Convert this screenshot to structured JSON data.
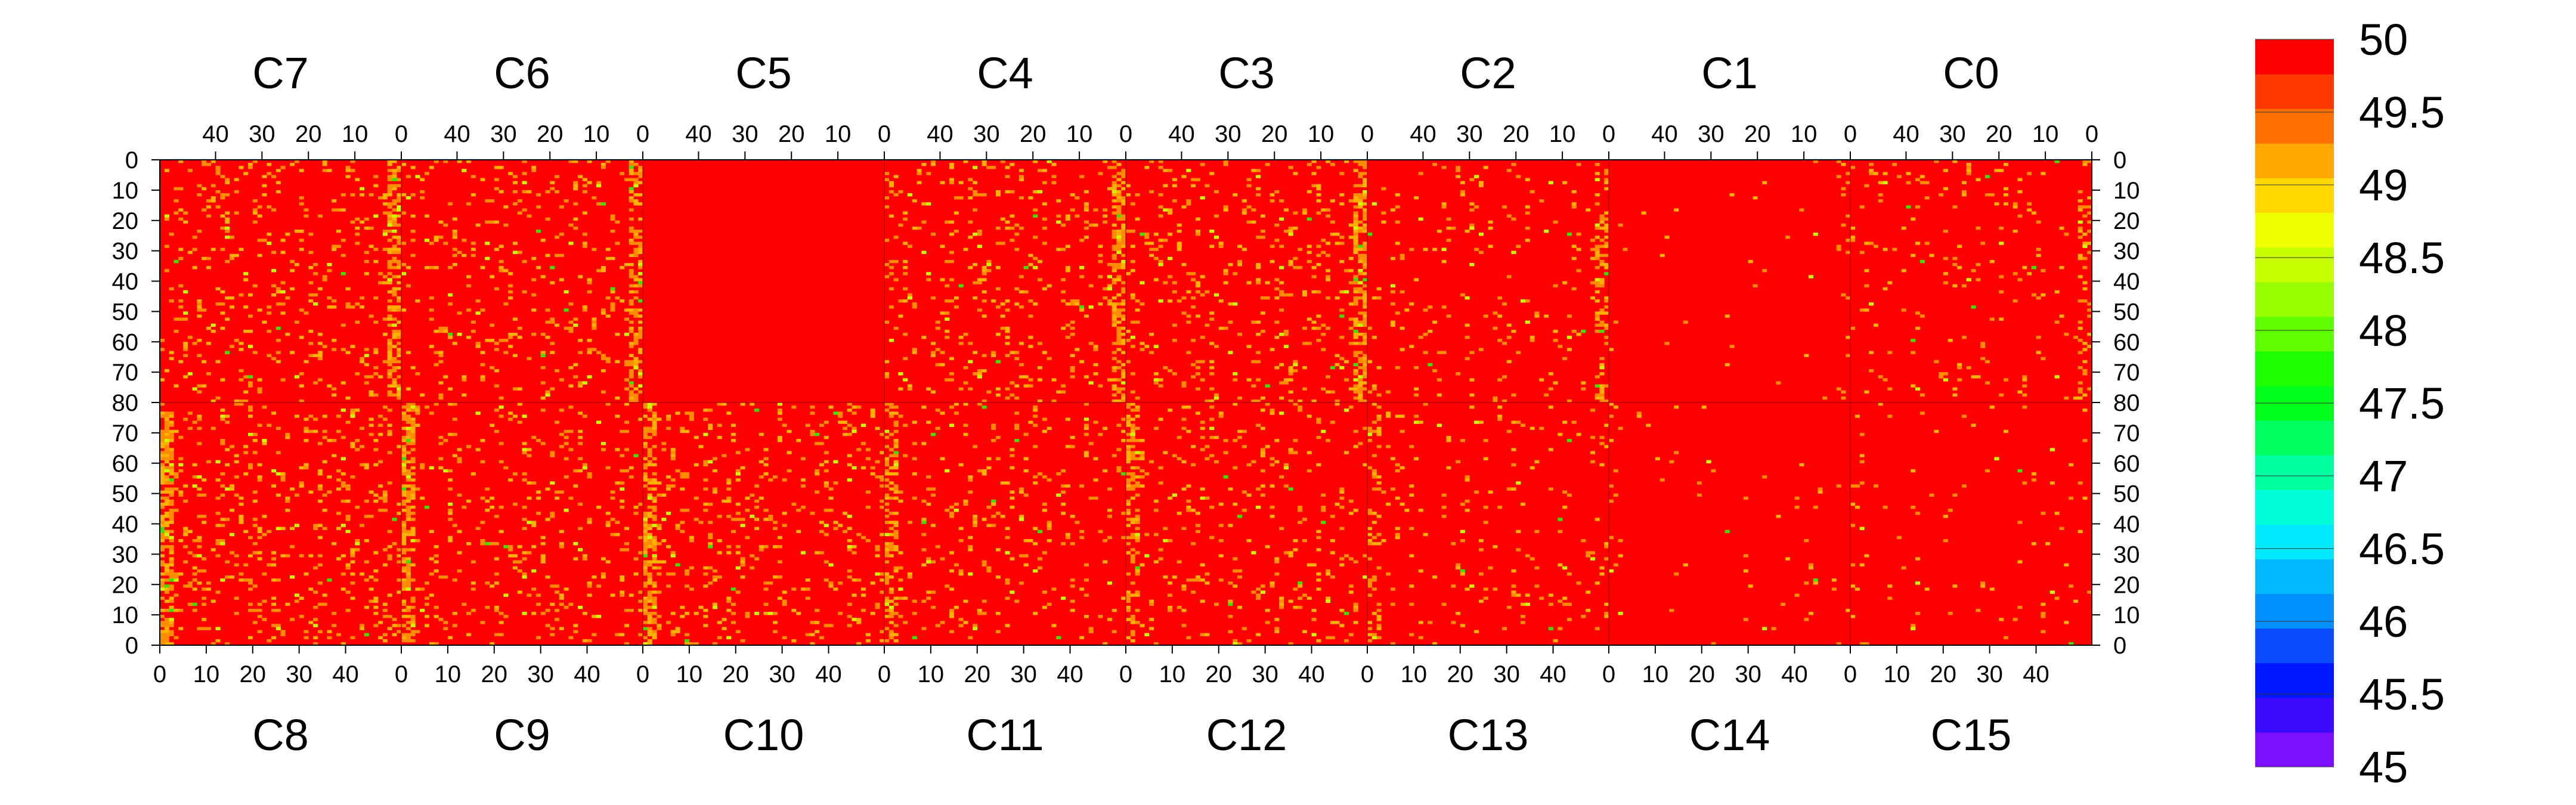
{
  "chart_data": {
    "type": "heatmap",
    "title": "",
    "top_chips": [
      "C7",
      "C6",
      "C5",
      "C4",
      "C3",
      "C2",
      "C1",
      "C0"
    ],
    "bottom_chips": [
      "C8",
      "C9",
      "C10",
      "C11",
      "C12",
      "C13",
      "C14",
      "C15"
    ],
    "top_x_ticks": [
      "40",
      "30",
      "20",
      "10",
      "0"
    ],
    "bottom_x_ticks": [
      "0",
      "10",
      "20",
      "30",
      "40"
    ],
    "top_y_ticks": [
      "0",
      "10",
      "20",
      "30",
      "40",
      "50",
      "60",
      "70",
      "80"
    ],
    "bottom_y_ticks": [
      "0",
      "10",
      "20",
      "30",
      "40",
      "50",
      "60",
      "70",
      "80"
    ],
    "columns_per_chip": 52,
    "rows_per_half": 80,
    "colorbar": {
      "min": 45,
      "max": 50,
      "tick_labels": [
        "45",
        "45.5",
        "46",
        "46.5",
        "47",
        "47.5",
        "48",
        "48.5",
        "49",
        "49.5",
        "50"
      ],
      "colors": [
        "#7a10ff",
        "#3c0aff",
        "#0018ff",
        "#0a4cff",
        "#0090ff",
        "#00b8ff",
        "#00e8ff",
        "#00ffd8",
        "#00ffa0",
        "#00ff60",
        "#00ff1a",
        "#20ff00",
        "#60ff00",
        "#98ff00",
        "#c8ff00",
        "#f0ff00",
        "#ffd800",
        "#ffa800",
        "#ff7000",
        "#ff3800",
        "#ff0000"
      ]
    },
    "value_distribution": "Almost all pixels at 50 (red); scattered pixels around 49-49.5 (orange/yellow), concentrated in columns near chip edge at column 0; a few around 48-48.5 (green). Chips C5, C1, C14, C15 upper/lower areas nearly uniform 50.",
    "colors": {
      "uniform": "#ff0000",
      "high": "#ff8c00",
      "mid": "#ffb000",
      "low": "#c8ff00",
      "lower": "#40e000"
    }
  }
}
